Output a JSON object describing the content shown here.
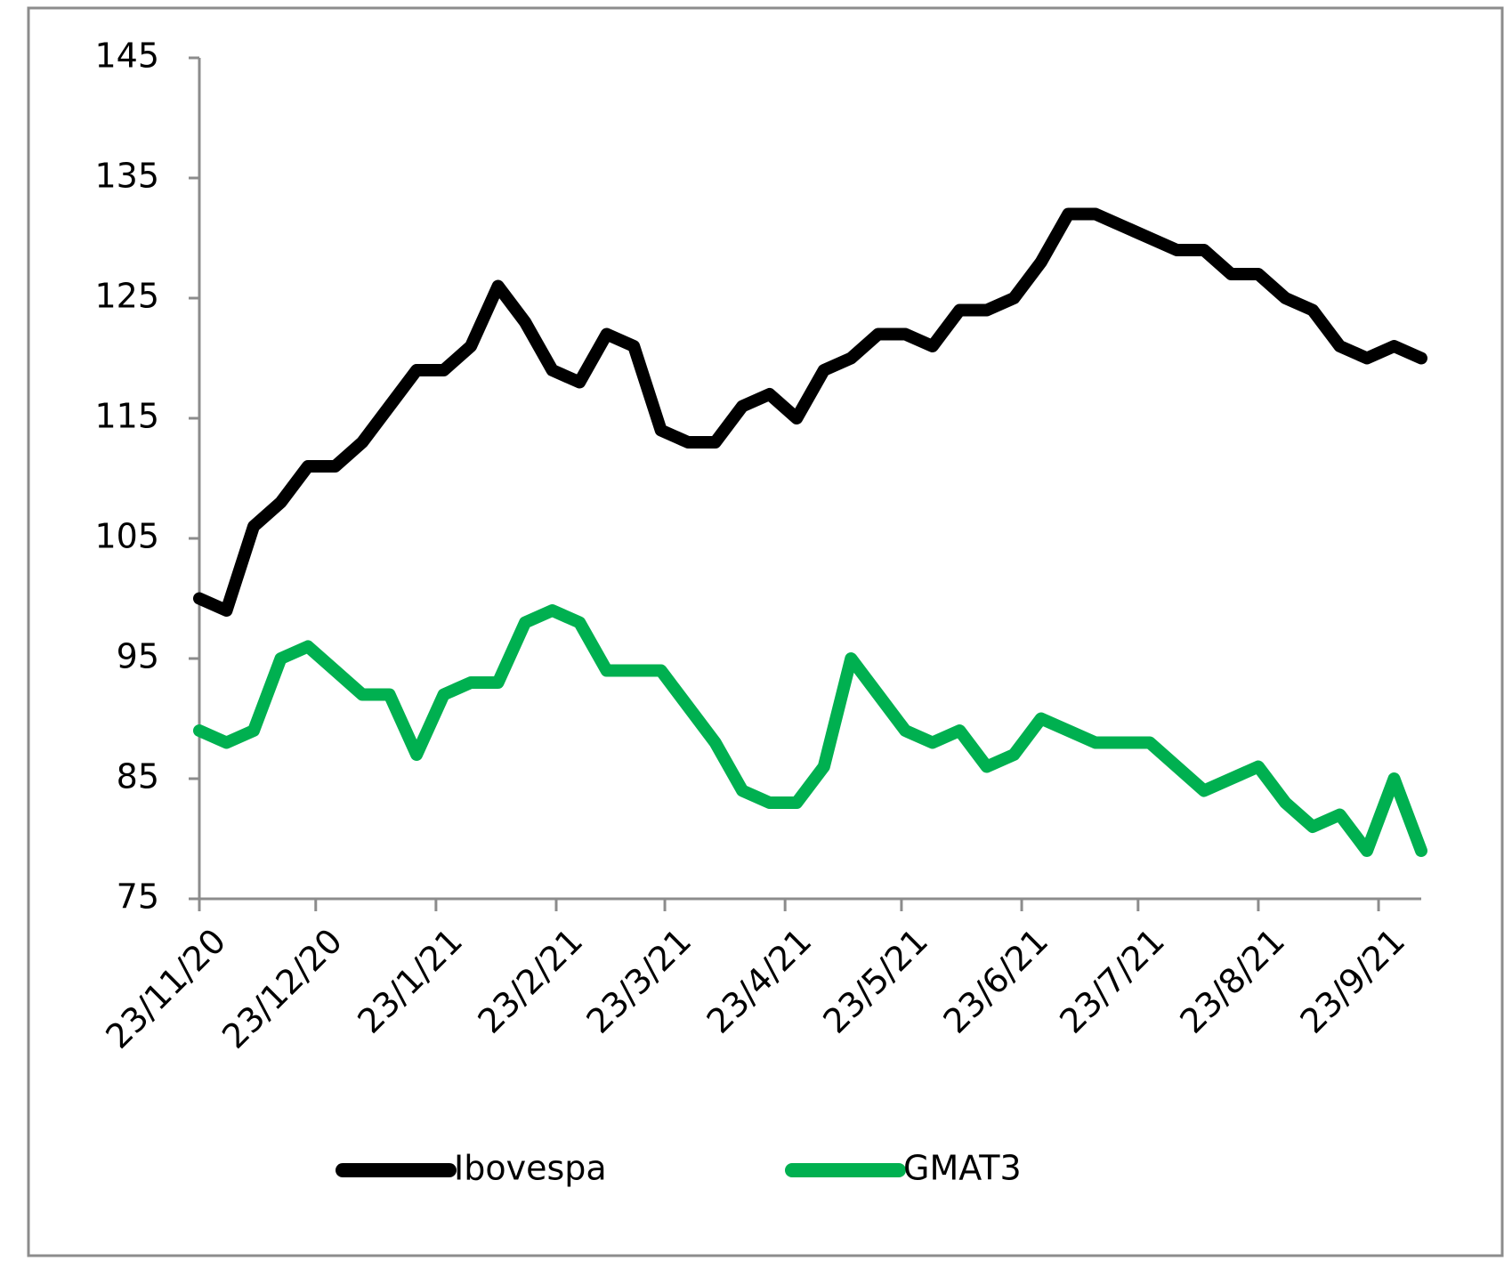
{
  "chart_data": {
    "type": "line",
    "x": [
      "2020-11-23",
      "2020-11-30",
      "2020-12-07",
      "2020-12-14",
      "2020-12-21",
      "2020-12-28",
      "2021-01-04",
      "2021-01-11",
      "2021-01-18",
      "2021-01-25",
      "2021-02-01",
      "2021-02-08",
      "2021-02-15",
      "2021-02-22",
      "2021-03-01",
      "2021-03-08",
      "2021-03-15",
      "2021-03-22",
      "2021-03-29",
      "2021-04-05",
      "2021-04-12",
      "2021-04-19",
      "2021-04-26",
      "2021-05-03",
      "2021-05-10",
      "2021-05-17",
      "2021-05-24",
      "2021-05-31",
      "2021-06-07",
      "2021-06-14",
      "2021-06-21",
      "2021-06-28",
      "2021-07-05",
      "2021-07-12",
      "2021-07-19",
      "2021-07-26",
      "2021-08-02",
      "2021-08-09",
      "2021-08-16",
      "2021-08-23",
      "2021-08-30",
      "2021-09-06",
      "2021-09-13",
      "2021-09-20",
      "2021-09-27",
      "2021-10-04"
    ],
    "series": [
      {
        "name": "Ibovespa",
        "color": "#000000",
        "values": [
          100,
          99,
          106,
          108,
          111,
          111,
          113,
          116,
          119,
          119,
          121,
          126,
          123,
          119,
          118,
          122,
          121,
          114,
          113,
          113,
          116,
          117,
          115,
          119,
          120,
          122,
          122,
          121,
          124,
          124,
          125,
          128,
          132,
          132,
          131,
          130,
          129,
          129,
          127,
          127,
          125,
          124,
          121,
          120,
          121,
          120
        ]
      },
      {
        "name": "GMAT3",
        "color": "#00b050",
        "values": [
          89,
          88,
          89,
          95,
          96,
          94,
          92,
          92,
          87,
          92,
          93,
          93,
          98,
          99,
          98,
          94,
          94,
          94,
          91,
          88,
          84,
          83,
          83,
          86,
          95,
          92,
          89,
          88,
          89,
          86,
          87,
          90,
          89,
          88,
          88,
          88,
          86,
          84,
          85,
          86,
          83,
          81,
          82,
          79,
          85,
          79
        ]
      }
    ],
    "xlim": [
      "2020-11-23",
      "2021-10-04"
    ],
    "xticks": [
      {
        "value": "2020-11-23",
        "label": "23/11/20"
      },
      {
        "value": "2020-12-23",
        "label": "23/12/20"
      },
      {
        "value": "2021-01-23",
        "label": "23/1/21"
      },
      {
        "value": "2021-02-23",
        "label": "23/2/21"
      },
      {
        "value": "2021-03-23",
        "label": "23/3/21"
      },
      {
        "value": "2021-04-23",
        "label": "23/4/21"
      },
      {
        "value": "2021-05-23",
        "label": "23/5/21"
      },
      {
        "value": "2021-06-23",
        "label": "23/6/21"
      },
      {
        "value": "2021-07-23",
        "label": "23/7/21"
      },
      {
        "value": "2021-08-23",
        "label": "23/8/21"
      },
      {
        "value": "2021-09-23",
        "label": "23/9/21"
      }
    ],
    "ylim": [
      75,
      145
    ],
    "yticks": [
      75,
      85,
      95,
      105,
      115,
      125,
      135,
      145
    ],
    "grid": false,
    "legend": "bottom"
  }
}
